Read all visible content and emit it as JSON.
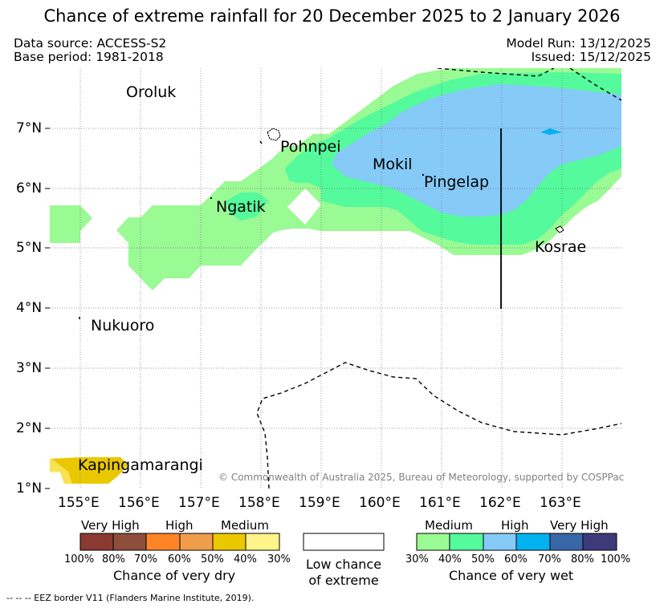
{
  "header": {
    "title": "Chance of extreme rainfall for 20 December 2025 to 2 January 2026",
    "source": "Data source: ACCESS-S2",
    "base_period": "Base period: 1981-2018",
    "model_run": "Model Run: 13/12/2025",
    "issued": "Issued: 15/12/2025"
  },
  "map": {
    "lon_ticks": [
      "155°E",
      "156°E",
      "157°E",
      "158°E",
      "159°E",
      "160°E",
      "161°E",
      "162°E",
      "163°E"
    ],
    "lat_ticks": [
      "1°N",
      "2°N",
      "3°N",
      "4°N",
      "5°N",
      "6°N",
      "7°N"
    ],
    "places": [
      "Oroluk",
      "Pohnpei",
      "Mokil",
      "Pingelap",
      "Ngatik",
      "Kosrae",
      "Nukuoro",
      "Kapingamarangi"
    ],
    "copyright": "© Commonwealth of Australia 2025, Bureau of Meteorology, supported by COSPPac",
    "colors": {
      "wet_medium_30": "#9afa94",
      "wet_medium_40": "#54fa9c",
      "wet_high_50": "#86caf8",
      "wet_high_60": "#02b2ee",
      "dry_medium_40": "#eac800"
    }
  },
  "legend": {
    "dry": {
      "categories": [
        "Very High",
        "High",
        "Medium"
      ],
      "percents": [
        "100%",
        "80%",
        "70%",
        "60%",
        "50%",
        "40%",
        "30%"
      ],
      "caption": "Chance of very dry",
      "colors": [
        "#8a3a31",
        "#8d4e3c",
        "#fe8527",
        "#f09d4b",
        "#eac800",
        "#fef48a"
      ]
    },
    "low": {
      "line1": "Low chance",
      "line2": "of extreme"
    },
    "wet": {
      "categories": [
        "Medium",
        "High",
        "Very High"
      ],
      "percents": [
        "30%",
        "40%",
        "50%",
        "60%",
        "70%",
        "80%",
        "100%"
      ],
      "caption": "Chance of very wet",
      "colors": [
        "#9afa94",
        "#54fa9c",
        "#86caf8",
        "#02b2ee",
        "#3867a8",
        "#3d3a7a"
      ]
    }
  },
  "footer": {
    "eez_note": "-- -- -- EEZ border V11 (Flanders Marine Institute, 2019)."
  }
}
